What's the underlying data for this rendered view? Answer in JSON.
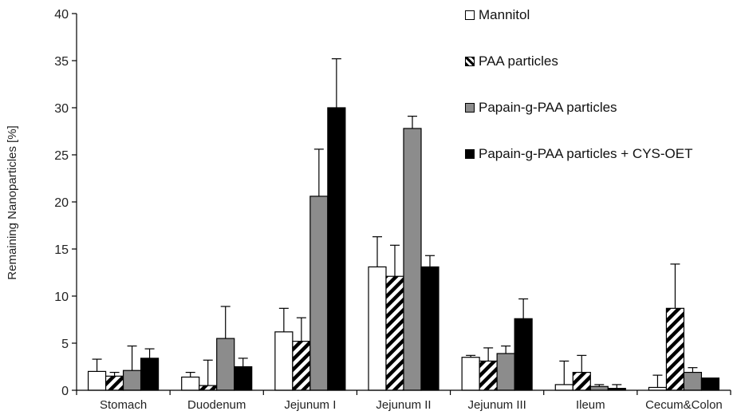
{
  "chart_data": {
    "type": "bar",
    "title": "",
    "xlabel": "",
    "ylabel": "Remaining Nanoparticles [%]",
    "ylim": [
      0,
      40
    ],
    "yticks": [
      0,
      5,
      10,
      15,
      20,
      25,
      30,
      35,
      40
    ],
    "grid": false,
    "legend_position": "top-right",
    "categories": [
      "Stomach",
      "Duodenum",
      "Jejunum I",
      "Jejunum II",
      "Jejunum III",
      "Ileum",
      "Cecum&Colon"
    ],
    "series": [
      {
        "name": "Mannitol",
        "fill": "white",
        "color": "#ffffff",
        "values": [
          2.0,
          1.4,
          6.2,
          13.1,
          3.5,
          0.6,
          0.3
        ],
        "errors": [
          1.3,
          0.5,
          2.5,
          3.2,
          0.2,
          2.5,
          1.3
        ]
      },
      {
        "name": "PAA particles",
        "fill": "hatched",
        "color": "#000000",
        "values": [
          1.5,
          0.5,
          5.2,
          12.1,
          3.1,
          1.9,
          8.7
        ],
        "errors": [
          0.4,
          2.7,
          2.5,
          3.3,
          1.4,
          1.8,
          4.7
        ]
      },
      {
        "name": "Papain-g-PAA particles",
        "fill": "gray",
        "color": "#8c8c8c",
        "values": [
          2.1,
          5.5,
          20.6,
          27.8,
          3.9,
          0.4,
          1.9
        ],
        "errors": [
          2.6,
          3.4,
          5.0,
          1.3,
          0.8,
          0.2,
          0.5
        ]
      },
      {
        "name": "Papain-g-PAA particles + CYS-OET",
        "fill": "black",
        "color": "#000000",
        "values": [
          3.4,
          2.5,
          30.0,
          13.1,
          7.6,
          0.2,
          1.3
        ],
        "errors": [
          1.0,
          0.9,
          5.2,
          1.2,
          2.1,
          0.4,
          0.0
        ]
      }
    ]
  }
}
